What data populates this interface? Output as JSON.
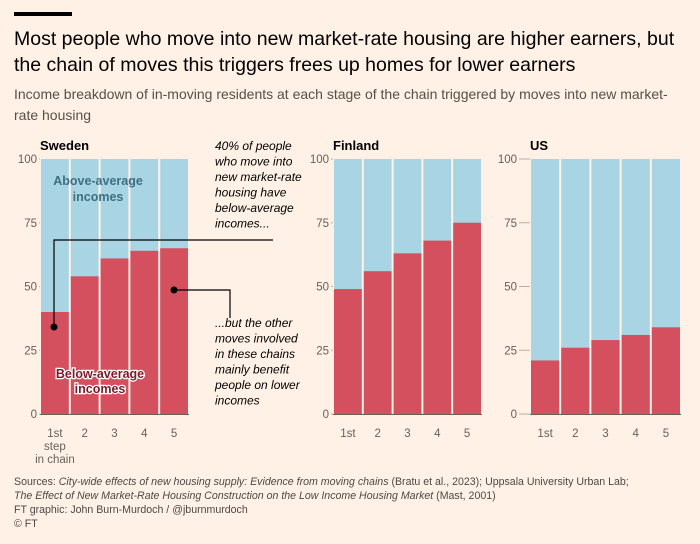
{
  "header": {
    "title": "Most people who move into new market-rate housing are higher earners, but the chain of moves this triggers frees up homes for lower earners",
    "subtitle": "Income breakdown of in-moving residents at each stage of the chain triggered by moves into new market-rate housing"
  },
  "colors": {
    "above": "#a9d4e3",
    "below": "#d4505f",
    "background": "#fff1e5",
    "axis_text": "#66605c"
  },
  "chart_data": [
    {
      "type": "bar",
      "title": "Sweden",
      "categories": [
        "1st step in chain",
        "2",
        "3",
        "4",
        "5"
      ],
      "series": [
        {
          "name": "Below-average incomes",
          "values": [
            40,
            54,
            61,
            64,
            65
          ]
        },
        {
          "name": "Above-average incomes",
          "values": [
            60,
            46,
            39,
            36,
            35
          ]
        }
      ],
      "ylim": [
        0,
        100
      ],
      "yticks": [
        0,
        25,
        50,
        75,
        100
      ],
      "stacked": true
    },
    {
      "type": "bar",
      "title": "Finland",
      "categories": [
        "1st",
        "2",
        "3",
        "4",
        "5"
      ],
      "series": [
        {
          "name": "Below-average incomes",
          "values": [
            49,
            56,
            63,
            68,
            75
          ]
        },
        {
          "name": "Above-average incomes",
          "values": [
            51,
            44,
            37,
            32,
            25
          ]
        }
      ],
      "ylim": [
        0,
        100
      ],
      "yticks": [
        0,
        25,
        50,
        75,
        100
      ],
      "stacked": true
    },
    {
      "type": "bar",
      "title": "US",
      "categories": [
        "1st",
        "2",
        "3",
        "4",
        "5"
      ],
      "series": [
        {
          "name": "Below-average incomes",
          "values": [
            21,
            26,
            29,
            31,
            34
          ]
        },
        {
          "name": "Above-average incomes",
          "values": [
            79,
            74,
            71,
            69,
            66
          ]
        }
      ],
      "ylim": [
        0,
        100
      ],
      "yticks": [
        0,
        25,
        50,
        75,
        100
      ],
      "stacked": true
    }
  ],
  "labels": {
    "above": [
      "Above-average",
      "incomes"
    ],
    "below": [
      "Below-average",
      "incomes"
    ],
    "sweden_first_category": [
      "1st",
      "step",
      "in chain"
    ]
  },
  "annotations": {
    "first": [
      "40% of people",
      "who move into",
      "new market-rate",
      "housing have",
      "below-average",
      "incomes..."
    ],
    "second": [
      "...but the other",
      "moves involved",
      "in these chains",
      "mainly benefit",
      "people on lower",
      "incomes"
    ]
  },
  "footer": {
    "sources_prefix": "Sources: ",
    "source1_title": "City-wide effects of new housing supply: Evidence from moving chains",
    "source1_rest": " (Bratu et al., 2023); Uppsala University Urban Lab;",
    "source2_title": "The Effect of New Market-Rate Housing Construction on the Low Income Housing Market",
    "source2_rest": " (Mast, 2001)",
    "credit": "FT graphic: John Burn-Murdoch / @jburnmurdoch",
    "copyright": "© FT"
  }
}
